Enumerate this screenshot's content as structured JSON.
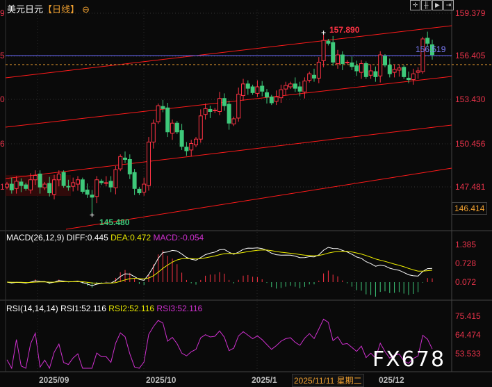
{
  "header": {
    "symbol": "美元日元",
    "period": "【日线】",
    "toggle_icon": "circle-minus-icon",
    "toolbar_icons": [
      "crosshair-icon",
      "bar-scale-icon",
      "play-step-icon",
      "forward-icon"
    ]
  },
  "price_axis": {
    "ticks": [
      "159.379",
      "156.405",
      "153.430",
      "150.456",
      "147.481"
    ],
    "prices": [
      159.379,
      156.405,
      153.43,
      150.456,
      147.481
    ]
  },
  "left_axis_fragments": [
    "9",
    "5",
    "0",
    "6",
    "1"
  ],
  "annotations": {
    "high_label": "157.890",
    "low_label": "145.480",
    "line_label": "156.519",
    "current_price_box": "146.414"
  },
  "colors": {
    "up": "#ff3344",
    "down": "#3ec97a",
    "channel": "#ff1a1a",
    "hline": "#6b6bff",
    "dashed": "#f0a030",
    "dif": "#ffffff",
    "dea": "#f2f200",
    "rsi": "#d030d0"
  },
  "chart_data": {
    "type": "candlestick",
    "closes": [
      147.6,
      147.2,
      147.8,
      147.5,
      147.3,
      147.9,
      148.2,
      147.4,
      147.6,
      147.0,
      147.9,
      148.3,
      147.5,
      147.4,
      147.7,
      147.9,
      147.1,
      146.9,
      146.7,
      147.9,
      147.7,
      147.7,
      147.4,
      148.6,
      149.5,
      149.3,
      148.3,
      147.3,
      147.0,
      147.6,
      150.5,
      151.8,
      153.0,
      152.8,
      151.2,
      151.8,
      151.2,
      150.2,
      149.9,
      150.4,
      150.7,
      152.3,
      152.8,
      152.6,
      152.7,
      153.5,
      153.0,
      151.8,
      152.1,
      153.8,
      154.5,
      154.2,
      153.9,
      154.3,
      154.0,
      153.6,
      153.2,
      153.6,
      154.1,
      154.4,
      154.5,
      154.2,
      154.0,
      154.7,
      155.2,
      154.9,
      156.0,
      157.5,
      157.3,
      156.0,
      156.5,
      155.9,
      156.0,
      155.7,
      155.4,
      155.9,
      155.0,
      155.4,
      155.0,
      156.5,
      155.8,
      155.2,
      155.5,
      155.6,
      155.0,
      154.8,
      155.2,
      155.4,
      157.6,
      157.3,
      156.52
    ],
    "high": 157.89,
    "low": 145.48
  },
  "macd": {
    "label": "MACD(26,12,9)",
    "diff": "DIFF:0.445",
    "dea": "DEA:0.472",
    "macd": "MACD:-0.054",
    "ticks": [
      "1.385",
      "0.728",
      "0.072"
    ]
  },
  "rsi": {
    "label": "RSI(14,14,14)",
    "rsi1": "RSI1:52.116",
    "rsi2": "RSI2:52.116",
    "rsi3": "RSI3:52.116",
    "ticks": [
      "75.415",
      "64.474",
      "53.533"
    ]
  },
  "dates": {
    "sep": "2025/09",
    "oct": "2025/10",
    "nov": "2025/1",
    "dec": "025/12",
    "cursor": "2025/11/11 星期二"
  },
  "watermark": "FX678"
}
